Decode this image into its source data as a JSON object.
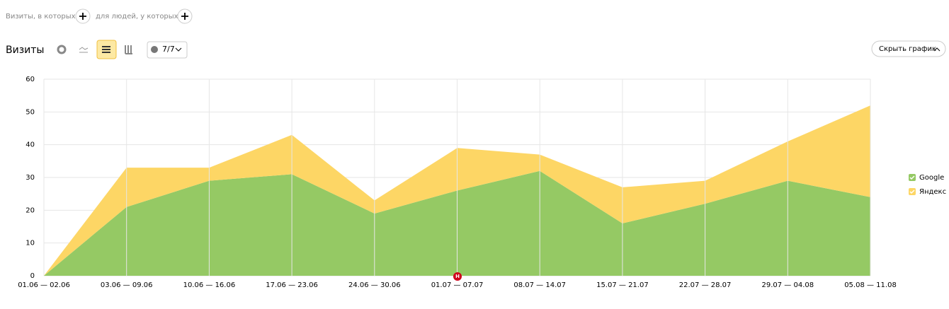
{
  "ui": {
    "filter_visits": "Визиты, в которых",
    "filter_people": "для людей, у которых",
    "section_title": "Визиты",
    "series_counter": "7/7",
    "hide_chart": "Скрыть график",
    "event_marker": "Н"
  },
  "chart_data": {
    "type": "area",
    "stacked": true,
    "categories": [
      "01.06 — 02.06",
      "03.06 — 09.06",
      "10.06 — 16.06",
      "17.06 — 23.06",
      "24.06 — 30.06",
      "01.07 — 07.07",
      "08.07 — 14.07",
      "15.07 — 21.07",
      "22.07 — 28.07",
      "29.07 — 04.08",
      "05.08 — 11.08"
    ],
    "series": [
      {
        "name": "Google",
        "color": "#95c964",
        "values": [
          0,
          21,
          29,
          31,
          19,
          26,
          32,
          16,
          22,
          29,
          24
        ]
      },
      {
        "name": "Яндекс",
        "color": "#fdd665",
        "values": [
          0,
          12,
          4,
          12,
          4,
          13,
          5,
          11,
          7,
          12,
          28
        ]
      }
    ],
    "ylim": [
      0,
      60
    ],
    "yticks": [
      0,
      10,
      20,
      30,
      40,
      50,
      60
    ],
    "grid": true,
    "legend": "right"
  }
}
